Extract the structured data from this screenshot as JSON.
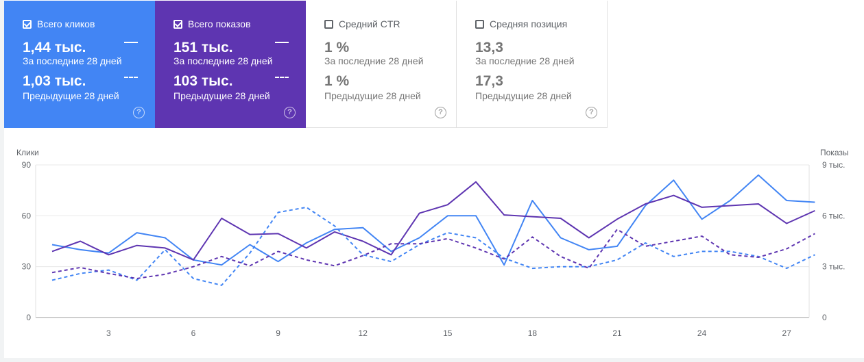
{
  "cards": [
    {
      "label": "Всего кликов",
      "checked": true,
      "current": "1,44 тыс.",
      "current_caption": "За последние 28 дней",
      "previous": "1,03 тыс.",
      "previous_caption": "Предыдущие 28 дней"
    },
    {
      "label": "Всего показов",
      "checked": true,
      "current": "151 тыс.",
      "current_caption": "За последние 28 дней",
      "previous": "103 тыс.",
      "previous_caption": "Предыдущие 28 дней"
    },
    {
      "label": "Средний CTR",
      "checked": false,
      "current": "1 %",
      "current_caption": "За последние 28 дней",
      "previous": "1 %",
      "previous_caption": "Предыдущие 28 дней"
    },
    {
      "label": "Средняя позиция",
      "checked": false,
      "current": "13,3",
      "current_caption": "За последние 28 дней",
      "previous": "17,3",
      "previous_caption": "Предыдущие 28 дней"
    }
  ],
  "help_glyph": "?",
  "colors": {
    "clicks": "#4285f4",
    "impressions": "#5e35b1"
  },
  "chart_data": {
    "type": "line",
    "ylabel_left": "Клики",
    "ylabel_right": "Показы",
    "ylim_left": [
      0,
      90
    ],
    "ylim_right": [
      0,
      9000
    ],
    "yticks_left": [
      "0",
      "30",
      "60",
      "90"
    ],
    "yticks_right": [
      "0",
      "3 тыс.",
      "6 тыс.",
      "9 тыс."
    ],
    "xticks": [
      "3",
      "6",
      "9",
      "12",
      "15",
      "18",
      "21",
      "24",
      "27"
    ],
    "x": [
      1,
      2,
      3,
      4,
      5,
      6,
      7,
      8,
      9,
      10,
      11,
      12,
      13,
      14,
      15,
      16,
      17,
      18,
      19,
      20,
      21,
      22,
      23,
      24,
      25,
      26,
      27,
      28
    ],
    "series": [
      {
        "axis": "left",
        "style": "solid",
        "color": "#4285f4",
        "values": [
          43,
          40,
          38,
          50,
          47,
          34,
          31,
          43,
          33,
          44,
          52,
          53,
          39,
          47,
          60,
          60,
          31,
          69,
          47,
          40,
          42,
          66,
          81,
          58,
          69,
          84,
          69,
          68
        ]
      },
      {
        "axis": "right",
        "style": "solid",
        "color": "#5e35b1",
        "values": [
          3900,
          4500,
          3700,
          4250,
          4100,
          3400,
          5850,
          4900,
          4950,
          4100,
          5050,
          4500,
          3700,
          6150,
          6650,
          8000,
          6050,
          5950,
          5850,
          4700,
          5800,
          6700,
          7200,
          6500,
          6600,
          6700,
          5550,
          6300
        ]
      },
      {
        "axis": "left",
        "style": "dashed",
        "color": "#4285f4",
        "values": [
          22,
          26,
          28,
          22,
          40,
          23,
          19,
          38,
          62,
          65,
          54,
          37,
          33,
          43,
          50,
          47,
          35,
          29,
          30,
          30,
          34,
          44,
          36,
          39,
          39,
          36,
          29,
          37
        ]
      },
      {
        "axis": "right",
        "style": "dashed",
        "color": "#5e35b1",
        "values": [
          2650,
          2950,
          2600,
          2300,
          2550,
          3000,
          3600,
          3050,
          3900,
          3400,
          3050,
          3650,
          4350,
          4350,
          4650,
          4100,
          3450,
          4750,
          3600,
          2900,
          5200,
          4200,
          4500,
          4800,
          3700,
          3550,
          4050,
          4950
        ]
      }
    ]
  }
}
